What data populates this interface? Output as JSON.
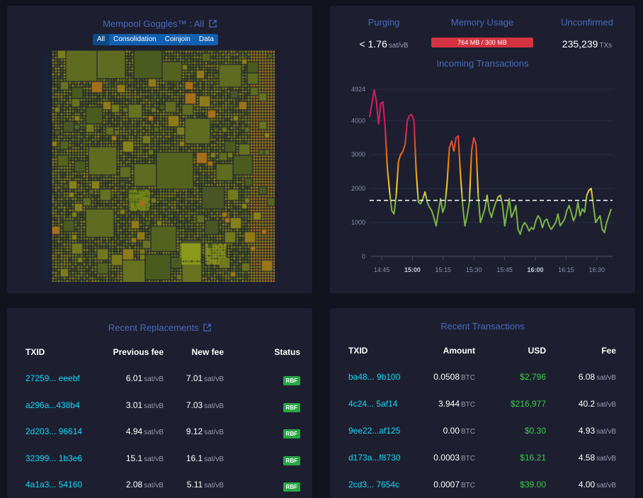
{
  "goggles": {
    "title": "Mempool Goggles™ : All",
    "filters": [
      "All",
      "Consolidation",
      "Coinjoin",
      "Data"
    ],
    "active_filter": "All",
    "accent_color": "#4a68b9",
    "icon": "external-link-icon"
  },
  "stats": {
    "purging": {
      "label": "Purging",
      "value": "< 1.76",
      "unit": "sat/vB"
    },
    "memory": {
      "label": "Memory Usage",
      "value": "764 MB / 300 MB",
      "color": "#d33340"
    },
    "unconfirmed": {
      "label": "Unconfirmed",
      "value": "235,239",
      "unit": "TXs"
    },
    "incoming_title": "Incoming Transactions"
  },
  "chart_data": {
    "type": "line",
    "title": "Incoming Transactions",
    "xlabel": "",
    "ylabel": "",
    "y_ticks": [
      "0",
      "1000",
      "2000",
      "3000",
      "4000",
      "4924"
    ],
    "ylim": [
      0,
      4924
    ],
    "x_ticks": [
      {
        "label": "14:45",
        "bold": false
      },
      {
        "label": "15:00",
        "bold": true
      },
      {
        "label": "15:15",
        "bold": false
      },
      {
        "label": "15:30",
        "bold": false
      },
      {
        "label": "15:45",
        "bold": false
      },
      {
        "label": "16:00",
        "bold": true
      },
      {
        "label": "16:15",
        "bold": false
      },
      {
        "label": "16:30",
        "bold": false
      }
    ],
    "threshold": 1650,
    "values": [
      4100,
      4500,
      4900,
      4600,
      3900,
      4500,
      4550,
      3800,
      2600,
      1900,
      1350,
      1250,
      1800,
      2800,
      3000,
      3100,
      3300,
      4000,
      4150,
      4180,
      4000,
      2500,
      1600,
      1550,
      1700,
      1900,
      1600,
      1450,
      1350,
      1150,
      900,
      1300,
      1700,
      1300,
      1500,
      2200,
      3200,
      3400,
      3100,
      3500,
      3550,
      2400,
      1500,
      900,
      1200,
      1600,
      3100,
      3500,
      3300,
      1800,
      1000,
      1200,
      1400,
      1800,
      1350,
      1150,
      1400,
      1600,
      1750,
      1800,
      1500,
      900,
      1300,
      1700,
      1150,
      1300,
      1500,
      800,
      650,
      900,
      1000,
      900,
      750,
      850,
      800,
      1050,
      1200,
      1100,
      850,
      1050,
      1100,
      900,
      800,
      900,
      1000,
      1250,
      900,
      1000,
      1100,
      1350,
      1500,
      1300,
      1050,
      1200,
      1600,
      1200,
      1400,
      1300,
      1800,
      1950,
      2000,
      1500,
      1000,
      1100,
      1200,
      800,
      700,
      1000,
      1200,
      1400
    ],
    "colors": {
      "high": "#d81b60",
      "mid": "#f57c00",
      "low": "#fdd835",
      "base": "#7cb342"
    }
  },
  "replacements": {
    "title": "Recent Replacements",
    "headers": [
      "TXID",
      "Previous fee",
      "New fee",
      "Status"
    ],
    "unit": "sat/vB",
    "rows": [
      {
        "txid": "27259...  eeebf",
        "prev": "6.01",
        "new": "7.01",
        "status": "RBF"
      },
      {
        "txid": "a296a...438b4",
        "prev": "3.01",
        "new": "7.03",
        "status": "RBF"
      },
      {
        "txid": "2d203... 96614",
        "prev": "4.94",
        "new": "9.12",
        "status": "RBF"
      },
      {
        "txid": "32399... 1b3e6",
        "prev": "15.1",
        "new": "16.1",
        "status": "RBF"
      },
      {
        "txid": "4a1a3...  54160",
        "prev": "2.08",
        "new": "5.11",
        "status": "RBF"
      }
    ]
  },
  "transactions": {
    "title": "Recent Transactions",
    "headers": [
      "TXID",
      "Amount",
      "USD",
      "Fee"
    ],
    "btc_unit": "BTC",
    "fee_unit": "sat/vB",
    "rows": [
      {
        "txid": "ba48... 9b100",
        "amount": "0.0508",
        "usd": "$2,796",
        "fee": "6.08"
      },
      {
        "txid": "4c24...  5af14",
        "amount": "3.944",
        "usd": "$216,977",
        "fee": "40.2"
      },
      {
        "txid": "9ee22...af125",
        "amount": "0.00",
        "usd": "$0.30",
        "fee": "4.93"
      },
      {
        "txid": "d173a...f8730",
        "amount": "0.0003",
        "usd": "$16.21",
        "fee": "4.58"
      },
      {
        "txid": "2cd3... 7654c",
        "amount": "0.0007",
        "usd": "$39.00",
        "fee": "4.00"
      }
    ]
  }
}
